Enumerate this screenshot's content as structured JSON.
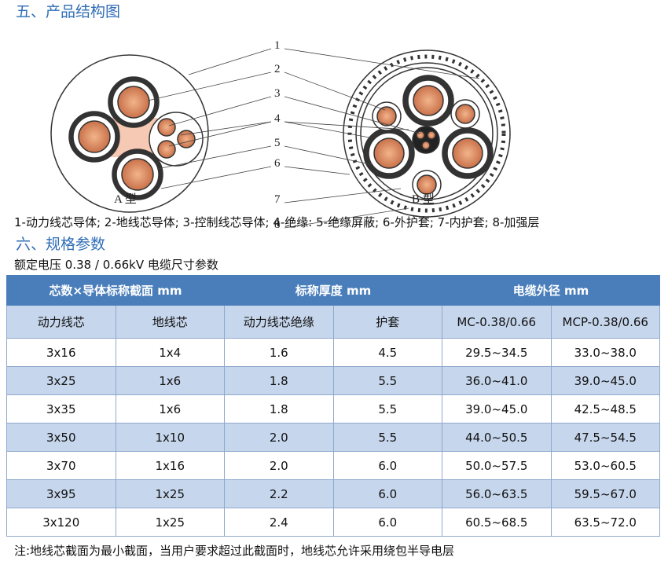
{
  "section1": {
    "title": "五、产品结构图"
  },
  "diagram": {
    "labels": [
      "1",
      "2",
      "3",
      "4",
      "5",
      "6",
      "7",
      "8"
    ],
    "type_a": "A 型",
    "type_b": "B 型"
  },
  "caption": "1-动力线芯导体; 2-地线芯导体; 3-控制线芯导体; 4-绝缘: 5-绝缘屏蔽; 6-外护套; 7-内护套; 8-加强层",
  "section2": {
    "title": "六、规格参数",
    "subtitle": "额定电压 0.38 / 0.66kV 电缆尺寸参数"
  },
  "table": {
    "groups": [
      "芯数×导体标称截面 mm",
      "标称厚度 mm",
      "电缆外径 mm"
    ],
    "columns": [
      "动力线芯",
      "地线芯",
      "动力线芯绝缘",
      "护套",
      "MC-0.38/0.66",
      "MCP-0.38/0.66"
    ],
    "rows": [
      [
        "3x16",
        "1x4",
        "1.6",
        "4.5",
        "29.5~34.5",
        "33.0~38.0"
      ],
      [
        "3x25",
        "1x6",
        "1.8",
        "5.5",
        "36.0~41.0",
        "39.0~45.0"
      ],
      [
        "3x35",
        "1x6",
        "1.8",
        "5.5",
        "39.0~45.0",
        "42.5~48.5"
      ],
      [
        "3x50",
        "1x10",
        "2.0",
        "5.5",
        "44.0~50.5",
        "47.5~54.5"
      ],
      [
        "3x70",
        "1x16",
        "2.0",
        "6.0",
        "50.0~57.5",
        "53.0~60.5"
      ],
      [
        "3x95",
        "1x25",
        "2.2",
        "6.0",
        "56.0~63.5",
        "59.5~67.0"
      ],
      [
        "3x120",
        "1x25",
        "2.4",
        "6.0",
        "60.5~68.5",
        "63.5~72.0"
      ]
    ]
  },
  "note": "注:地线芯截面为最小截面，当用户要求超过此截面时，地线芯允许采用绕包半导电层"
}
